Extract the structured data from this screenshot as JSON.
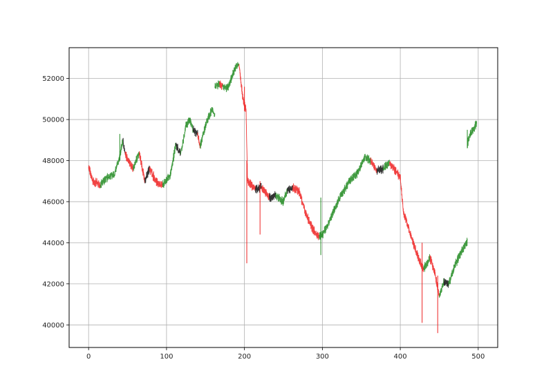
{
  "chart_data": {
    "type": "line",
    "title": "",
    "xlabel": "",
    "ylabel": "",
    "xlim": [
      -25,
      525
    ],
    "ylim": [
      38900,
      53500
    ],
    "grid": true,
    "x_ticks": [
      0,
      100,
      200,
      300,
      400,
      500
    ],
    "x_tick_labels": [
      "0",
      "100",
      "200",
      "300",
      "400",
      "500"
    ],
    "y_ticks": [
      40000,
      42000,
      44000,
      46000,
      48000,
      50000,
      52000
    ],
    "y_tick_labels": [
      "40000",
      "42000",
      "44000",
      "46000",
      "48000",
      "50000",
      "52000"
    ],
    "colors": {
      "up": "#228b22",
      "down": "#ee2222",
      "neutral": "#111111",
      "frame": "#000000",
      "grid": "#b0b0b0"
    },
    "segments": [
      {
        "x0": 0,
        "x1": 5,
        "y0": 47700,
        "y1": 47000,
        "trend": "down"
      },
      {
        "x0": 5,
        "x1": 15,
        "y0": 47000,
        "y1": 46800,
        "trend": "down"
      },
      {
        "x0": 15,
        "x1": 25,
        "y0": 46800,
        "y1": 47200,
        "trend": "up"
      },
      {
        "x0": 25,
        "x1": 33,
        "y0": 47200,
        "y1": 47300,
        "trend": "up"
      },
      {
        "x0": 33,
        "x1": 40,
        "y0": 47300,
        "y1": 48200,
        "trend": "up"
      },
      {
        "x0": 40,
        "x1": 44,
        "y0": 48200,
        "y1": 49000,
        "trend": "up"
      },
      {
        "x0": 44,
        "x1": 47,
        "y0": 49000,
        "y1": 48300,
        "trend": "neutral"
      },
      {
        "x0": 47,
        "x1": 57,
        "y0": 48300,
        "y1": 47600,
        "trend": "down"
      },
      {
        "x0": 57,
        "x1": 65,
        "y0": 47600,
        "y1": 48400,
        "trend": "up"
      },
      {
        "x0": 65,
        "x1": 72,
        "y0": 48400,
        "y1": 47000,
        "trend": "down"
      },
      {
        "x0": 72,
        "x1": 78,
        "y0": 47000,
        "y1": 47600,
        "trend": "neutral"
      },
      {
        "x0": 78,
        "x1": 88,
        "y0": 47600,
        "y1": 46900,
        "trend": "down"
      },
      {
        "x0": 88,
        "x1": 95,
        "y0": 46900,
        "y1": 46800,
        "trend": "down"
      },
      {
        "x0": 95,
        "x1": 105,
        "y0": 46800,
        "y1": 47300,
        "trend": "up"
      },
      {
        "x0": 105,
        "x1": 112,
        "y0": 47300,
        "y1": 48800,
        "trend": "up"
      },
      {
        "x0": 112,
        "x1": 118,
        "y0": 48800,
        "y1": 48300,
        "trend": "neutral"
      },
      {
        "x0": 118,
        "x1": 125,
        "y0": 48300,
        "y1": 49700,
        "trend": "up"
      },
      {
        "x0": 125,
        "x1": 130,
        "y0": 49700,
        "y1": 50000,
        "trend": "up"
      },
      {
        "x0": 130,
        "x1": 134,
        "y0": 50000,
        "y1": 49500,
        "trend": "up"
      },
      {
        "x0": 134,
        "x1": 140,
        "y0": 49500,
        "y1": 49300,
        "trend": "neutral"
      },
      {
        "x0": 140,
        "x1": 143,
        "y0": 49300,
        "y1": 48700,
        "trend": "down"
      },
      {
        "x0": 143,
        "x1": 150,
        "y0": 48700,
        "y1": 49700,
        "trend": "up"
      },
      {
        "x0": 150,
        "x1": 158,
        "y0": 49700,
        "y1": 50500,
        "trend": "up"
      },
      {
        "x0": 158,
        "x1": 162,
        "y0": 50500,
        "y1": 50300,
        "trend": "up"
      },
      {
        "x0": 162,
        "x1": 168,
        "y0": 51600,
        "y1": 51700,
        "trend": "up"
      },
      {
        "x0": 168,
        "x1": 172,
        "y0": 51700,
        "y1": 51600,
        "trend": "down"
      },
      {
        "x0": 172,
        "x1": 178,
        "y0": 51600,
        "y1": 51500,
        "trend": "up"
      },
      {
        "x0": 178,
        "x1": 188,
        "y0": 51500,
        "y1": 52500,
        "trend": "up"
      },
      {
        "x0": 188,
        "x1": 193,
        "y0": 52500,
        "y1": 52700,
        "trend": "up"
      },
      {
        "x0": 193,
        "x1": 198,
        "y0": 52700,
        "y1": 51000,
        "trend": "down"
      },
      {
        "x0": 198,
        "x1": 202,
        "y0": 51000,
        "y1": 50500,
        "trend": "down"
      },
      {
        "x0": 202,
        "x1": 204,
        "y0": 50500,
        "y1": 47000,
        "trend": "down"
      },
      {
        "x0": 204,
        "x1": 214,
        "y0": 47000,
        "y1": 46600,
        "trend": "down"
      },
      {
        "x0": 214,
        "x1": 222,
        "y0": 46600,
        "y1": 46700,
        "trend": "neutral"
      },
      {
        "x0": 222,
        "x1": 232,
        "y0": 46700,
        "y1": 46200,
        "trend": "down"
      },
      {
        "x0": 232,
        "x1": 240,
        "y0": 46200,
        "y1": 46300,
        "trend": "neutral"
      },
      {
        "x0": 240,
        "x1": 250,
        "y0": 46300,
        "y1": 46000,
        "trend": "up"
      },
      {
        "x0": 250,
        "x1": 255,
        "y0": 46000,
        "y1": 46600,
        "trend": "up"
      },
      {
        "x0": 255,
        "x1": 262,
        "y0": 46600,
        "y1": 46700,
        "trend": "neutral"
      },
      {
        "x0": 262,
        "x1": 270,
        "y0": 46700,
        "y1": 46500,
        "trend": "down"
      },
      {
        "x0": 270,
        "x1": 280,
        "y0": 46500,
        "y1": 45300,
        "trend": "down"
      },
      {
        "x0": 280,
        "x1": 290,
        "y0": 45300,
        "y1": 44500,
        "trend": "down"
      },
      {
        "x0": 290,
        "x1": 296,
        "y0": 44500,
        "y1": 44300,
        "trend": "down"
      },
      {
        "x0": 296,
        "x1": 300,
        "y0": 44300,
        "y1": 44400,
        "trend": "up"
      },
      {
        "x0": 300,
        "x1": 306,
        "y0": 44400,
        "y1": 44800,
        "trend": "up"
      },
      {
        "x0": 306,
        "x1": 315,
        "y0": 44800,
        "y1": 45600,
        "trend": "up"
      },
      {
        "x0": 315,
        "x1": 325,
        "y0": 45600,
        "y1": 46400,
        "trend": "up"
      },
      {
        "x0": 325,
        "x1": 335,
        "y0": 46400,
        "y1": 47000,
        "trend": "up"
      },
      {
        "x0": 335,
        "x1": 345,
        "y0": 47000,
        "y1": 47400,
        "trend": "up"
      },
      {
        "x0": 345,
        "x1": 355,
        "y0": 47400,
        "y1": 48200,
        "trend": "up"
      },
      {
        "x0": 355,
        "x1": 362,
        "y0": 48200,
        "y1": 48000,
        "trend": "up"
      },
      {
        "x0": 362,
        "x1": 370,
        "y0": 48000,
        "y1": 47500,
        "trend": "down"
      },
      {
        "x0": 370,
        "x1": 378,
        "y0": 47500,
        "y1": 47600,
        "trend": "neutral"
      },
      {
        "x0": 378,
        "x1": 386,
        "y0": 47600,
        "y1": 47900,
        "trend": "up"
      },
      {
        "x0": 386,
        "x1": 394,
        "y0": 47900,
        "y1": 47500,
        "trend": "down"
      },
      {
        "x0": 394,
        "x1": 400,
        "y0": 47500,
        "y1": 47200,
        "trend": "down"
      },
      {
        "x0": 400,
        "x1": 404,
        "y0": 47200,
        "y1": 45500,
        "trend": "down"
      },
      {
        "x0": 404,
        "x1": 410,
        "y0": 45500,
        "y1": 44800,
        "trend": "down"
      },
      {
        "x0": 410,
        "x1": 418,
        "y0": 44800,
        "y1": 43800,
        "trend": "down"
      },
      {
        "x0": 418,
        "x1": 424,
        "y0": 43800,
        "y1": 43200,
        "trend": "down"
      },
      {
        "x0": 424,
        "x1": 430,
        "y0": 43200,
        "y1": 42700,
        "trend": "down"
      },
      {
        "x0": 430,
        "x1": 438,
        "y0": 42700,
        "y1": 43300,
        "trend": "up"
      },
      {
        "x0": 438,
        "x1": 444,
        "y0": 43300,
        "y1": 42600,
        "trend": "down"
      },
      {
        "x0": 444,
        "x1": 450,
        "y0": 42600,
        "y1": 41400,
        "trend": "down"
      },
      {
        "x0": 450,
        "x1": 456,
        "y0": 41400,
        "y1": 42100,
        "trend": "up"
      },
      {
        "x0": 456,
        "x1": 462,
        "y0": 42100,
        "y1": 42000,
        "trend": "neutral"
      },
      {
        "x0": 462,
        "x1": 470,
        "y0": 42000,
        "y1": 42900,
        "trend": "up"
      },
      {
        "x0": 470,
        "x1": 478,
        "y0": 42900,
        "y1": 43500,
        "trend": "up"
      },
      {
        "x0": 478,
        "x1": 486,
        "y0": 43500,
        "y1": 44100,
        "trend": "up"
      },
      {
        "x0": 486,
        "x1": 490,
        "y0": 48800,
        "y1": 49300,
        "trend": "up"
      },
      {
        "x0": 490,
        "x1": 498,
        "y0": 49300,
        "y1": 49800,
        "trend": "up"
      }
    ],
    "wicks": [
      {
        "x": 40,
        "low": 48000,
        "high": 49300,
        "trend": "up"
      },
      {
        "x": 200,
        "low": 50400,
        "high": 51600,
        "trend": "down"
      },
      {
        "x": 203,
        "low": 43000,
        "high": 48000,
        "trend": "down"
      },
      {
        "x": 220,
        "low": 44400,
        "high": 47000,
        "trend": "down"
      },
      {
        "x": 298,
        "low": 43400,
        "high": 46200,
        "trend": "up"
      },
      {
        "x": 428,
        "low": 40100,
        "high": 44000,
        "trend": "down"
      },
      {
        "x": 448,
        "low": 39600,
        "high": 42400,
        "trend": "down"
      },
      {
        "x": 486,
        "low": 48600,
        "high": 49500,
        "trend": "up"
      }
    ]
  }
}
